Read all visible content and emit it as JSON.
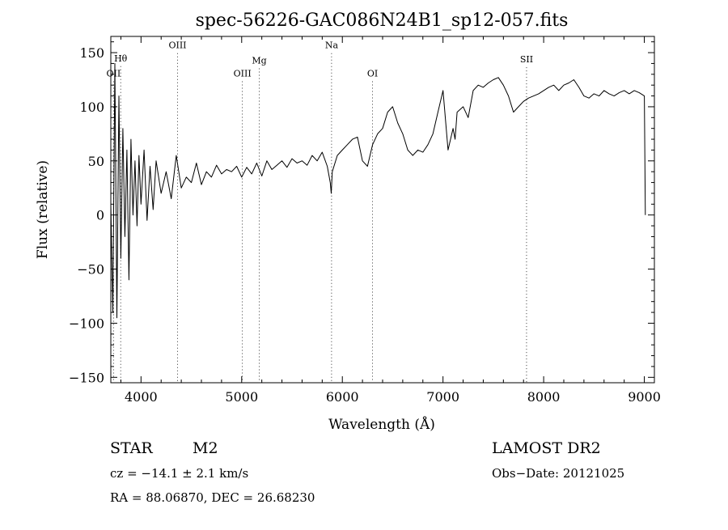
{
  "chart_data": {
    "type": "line",
    "title": "spec-56226-GAC086N24B1_sp12-057.fits",
    "xlabel": "Wavelength (Å)",
    "ylabel": "Flux (relative)",
    "xlim": [
      3700,
      9100
    ],
    "ylim": [
      -155,
      165
    ],
    "xticks": [
      4000,
      5000,
      6000,
      7000,
      8000,
      9000
    ],
    "xtick_labels": [
      "4000",
      "5000",
      "6000",
      "7000",
      "8000",
      "9000"
    ],
    "yticks": [
      -150,
      -100,
      -50,
      0,
      50,
      100,
      150
    ],
    "ytick_labels": [
      "−150",
      "−100",
      "−50",
      "0",
      "50",
      "100",
      "150"
    ],
    "grid": false,
    "series": [
      {
        "color": "#000000",
        "x": [
          3700,
          3720,
          3740,
          3760,
          3780,
          3800,
          3820,
          3840,
          3860,
          3880,
          3900,
          3920,
          3940,
          3960,
          3980,
          4000,
          4030,
          4060,
          4090,
          4120,
          4150,
          4200,
          4250,
          4300,
          4350,
          4400,
          4450,
          4500,
          4550,
          4600,
          4650,
          4700,
          4750,
          4800,
          4850,
          4900,
          4950,
          5000,
          5050,
          5100,
          5150,
          5200,
          5250,
          5300,
          5350,
          5400,
          5450,
          5500,
          5550,
          5600,
          5650,
          5700,
          5750,
          5800,
          5850,
          5880,
          5890,
          5900,
          5950,
          6000,
          6050,
          6100,
          6150,
          6200,
          6250,
          6300,
          6350,
          6400,
          6450,
          6500,
          6550,
          6600,
          6650,
          6700,
          6750,
          6800,
          6850,
          6900,
          6950,
          7000,
          7050,
          7100,
          7120,
          7140,
          7200,
          7250,
          7300,
          7350,
          7400,
          7450,
          7500,
          7550,
          7600,
          7650,
          7700,
          7750,
          7800,
          7850,
          7900,
          7950,
          8000,
          8050,
          8100,
          8150,
          8200,
          8250,
          8300,
          8350,
          8400,
          8450,
          8500,
          8550,
          8600,
          8650,
          8700,
          8750,
          8800,
          8850,
          8900,
          8950,
          9000,
          9010
        ],
        "y": [
          10,
          -90,
          140,
          -95,
          110,
          -40,
          80,
          -20,
          60,
          -60,
          70,
          0,
          50,
          -10,
          55,
          10,
          60,
          -5,
          45,
          5,
          50,
          20,
          40,
          15,
          55,
          25,
          35,
          30,
          48,
          28,
          40,
          35,
          46,
          38,
          42,
          40,
          45,
          35,
          44,
          38,
          48,
          36,
          50,
          42,
          46,
          50,
          44,
          52,
          48,
          50,
          46,
          55,
          50,
          58,
          45,
          30,
          20,
          40,
          55,
          60,
          65,
          70,
          72,
          50,
          45,
          65,
          75,
          80,
          95,
          100,
          85,
          75,
          60,
          55,
          60,
          58,
          65,
          75,
          95,
          115,
          60,
          80,
          70,
          95,
          100,
          90,
          115,
          120,
          118,
          122,
          125,
          127,
          120,
          110,
          95,
          100,
          105,
          108,
          110,
          112,
          115,
          118,
          120,
          115,
          120,
          122,
          125,
          118,
          110,
          108,
          112,
          110,
          115,
          112,
          110,
          113,
          115,
          112,
          115,
          113,
          110,
          0
        ]
      }
    ],
    "line_markers": [
      {
        "name": "OII",
        "x": 3727,
        "label_y": 128
      },
      {
        "name": "Hθ",
        "x": 3798,
        "label_y": 142
      },
      {
        "name": "OIII",
        "x": 4363,
        "label_y": 154
      },
      {
        "name": "OIII",
        "x": 5007,
        "label_y": 128
      },
      {
        "name": "Mg",
        "x": 5175,
        "label_y": 140
      },
      {
        "name": "Na",
        "x": 5893,
        "label_y": 154
      },
      {
        "name": "OI",
        "x": 6300,
        "label_y": 128
      },
      {
        "name": "SII",
        "x": 7830,
        "label_y": 141
      }
    ]
  },
  "info": {
    "object_type": "STAR",
    "subclass": "M2",
    "survey": "LAMOST DR2",
    "cz": "cz = −14.1 ± 2.1 km/s",
    "obs_date": "Obs−Date: 20121025",
    "coords": "RA =  88.06870, DEC =  26.68230"
  }
}
